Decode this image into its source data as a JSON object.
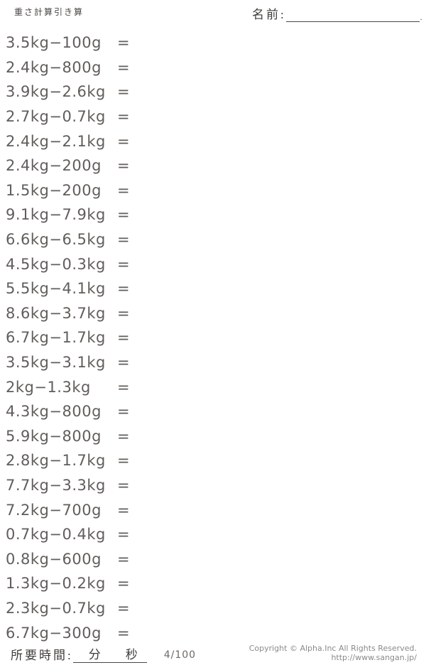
{
  "header": {
    "title": "重さ計算引き算",
    "name_label": "名前:",
    "name_line_end": "."
  },
  "problems": [
    {
      "expr": "3.5kg−100g",
      "equals": "="
    },
    {
      "expr": "2.4kg−800g",
      "equals": "="
    },
    {
      "expr": "3.9kg−2.6kg",
      "equals": "="
    },
    {
      "expr": "2.7kg−0.7kg",
      "equals": "="
    },
    {
      "expr": "2.4kg−2.1kg",
      "equals": "="
    },
    {
      "expr": "2.4kg−200g",
      "equals": "="
    },
    {
      "expr": "1.5kg−200g",
      "equals": "="
    },
    {
      "expr": "9.1kg−7.9kg",
      "equals": "="
    },
    {
      "expr": "6.6kg−6.5kg",
      "equals": "="
    },
    {
      "expr": "4.5kg−0.3kg",
      "equals": "="
    },
    {
      "expr": "5.5kg−4.1kg",
      "equals": "="
    },
    {
      "expr": "8.6kg−3.7kg",
      "equals": "="
    },
    {
      "expr": "6.7kg−1.7kg",
      "equals": "="
    },
    {
      "expr": "3.5kg−3.1kg",
      "equals": "="
    },
    {
      "expr": "2kg−1.3kg",
      "equals": "="
    },
    {
      "expr": "4.3kg−800g",
      "equals": "="
    },
    {
      "expr": "5.9kg−800g",
      "equals": "="
    },
    {
      "expr": "2.8kg−1.7kg",
      "equals": "="
    },
    {
      "expr": "7.7kg−3.3kg",
      "equals": "="
    },
    {
      "expr": "7.2kg−700g",
      "equals": "="
    },
    {
      "expr": "0.7kg−0.4kg",
      "equals": "="
    },
    {
      "expr": "0.8kg−600g",
      "equals": "="
    },
    {
      "expr": "1.3kg−0.2kg",
      "equals": "="
    },
    {
      "expr": "2.3kg−0.7kg",
      "equals": "="
    },
    {
      "expr": "6.7kg−300g",
      "equals": "="
    }
  ],
  "footer": {
    "time_label": "所要時間:",
    "minutes_label": "分",
    "seconds_label": "秒",
    "progress": "4/100",
    "copyright": "Copyright © Alpha.Inc All Rights Reserved.",
    "url": "http://www.sangan.jp/"
  },
  "colors": {
    "problem_text": "#615d5a",
    "label_text": "#3f3c3a",
    "muted_text": "#8c8989",
    "line": "#4a4744",
    "background": "#ffffff"
  }
}
